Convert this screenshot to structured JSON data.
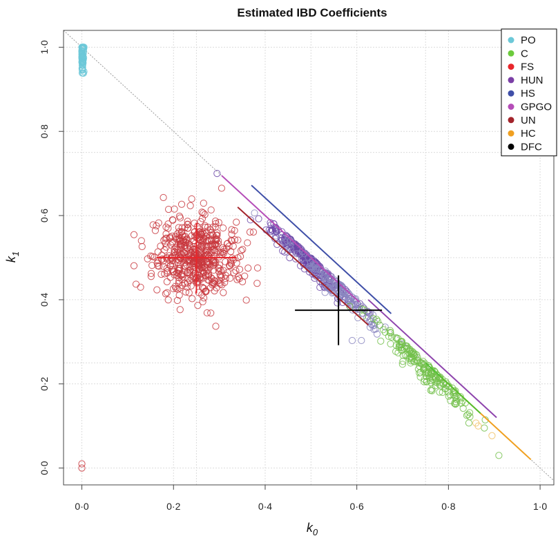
{
  "chart_data": {
    "type": "scatter",
    "title": "Estimated IBD Coefficients",
    "xlabel": "k",
    "xlabel_sub": "0",
    "ylabel": "k",
    "ylabel_sub": "1",
    "xlim": [
      -0.04,
      1.03
    ],
    "ylim": [
      -0.04,
      1.04
    ],
    "x_ticks": [
      0.0,
      0.2,
      0.4,
      0.6,
      0.8,
      1.0
    ],
    "x_tick_labels": [
      "0·0",
      "0·2",
      "0·4",
      "0·6",
      "0·8",
      "1·0"
    ],
    "y_ticks": [
      0.0,
      0.2,
      0.4,
      0.6,
      0.8,
      1.0
    ],
    "y_tick_labels": [
      "0·0",
      "0·2",
      "0·4",
      "0·6",
      "0·8",
      "1·0"
    ],
    "grid": true,
    "grid_lines": {
      "x": [
        0.25,
        0.5,
        0.75
      ],
      "y": [
        0.25,
        0.5,
        0.75
      ]
    },
    "reference_line": {
      "x": [
        0,
        1
      ],
      "y": [
        1,
        0
      ],
      "color": "#999999",
      "style": "dotted"
    },
    "legend_position": "top-right",
    "legend": [
      {
        "name": "PO",
        "color": "#6cc8d8"
      },
      {
        "name": "C",
        "color": "#6ccb3c"
      },
      {
        "name": "FS",
        "color": "#e8262b"
      },
      {
        "name": "HUN",
        "color": "#7b3fa6"
      },
      {
        "name": "HS",
        "color": "#3f4fa8"
      },
      {
        "name": "GPGO",
        "color": "#b54db8"
      },
      {
        "name": "UN",
        "color": "#a3242b"
      },
      {
        "name": "HC",
        "color": "#f0a020"
      },
      {
        "name": "DFC",
        "color": "#000000"
      }
    ],
    "clusters": [
      {
        "name": "FS",
        "color": "#c8383e",
        "center": [
          0.25,
          0.5
        ],
        "spread": [
          0.045,
          0.045
        ],
        "count": 520
      },
      {
        "name": "PO",
        "color": "#6cc8d8",
        "center": [
          0.003,
          0.975
        ],
        "spread": [
          0.002,
          0.018
        ],
        "count": 70
      },
      {
        "name": "HUN",
        "color": "#6b47a8",
        "center": [
          0.5,
          0.5
        ],
        "spread": [
          0.05,
          0.02
        ],
        "count": 260
      },
      {
        "name": "HS",
        "color": "#8a86c0",
        "center": [
          0.55,
          0.42
        ],
        "spread": [
          0.05,
          0.02
        ],
        "count": 140
      },
      {
        "name": "C",
        "color": "#72c04a",
        "center": [
          0.75,
          0.23
        ],
        "spread": [
          0.05,
          0.02
        ],
        "count": 180
      }
    ],
    "outlier_points": [
      {
        "x": 0.0,
        "y": 0.01,
        "color": "#c8383e"
      },
      {
        "x": 0.0,
        "y": 0.0,
        "color": "#c8383e"
      },
      {
        "x": 0.295,
        "y": 0.7,
        "color": "#6b47a8"
      },
      {
        "x": 0.305,
        "y": 0.665,
        "color": "#c8383e"
      },
      {
        "x": 0.59,
        "y": 0.303,
        "color": "#8a86c0"
      },
      {
        "x": 0.61,
        "y": 0.303,
        "color": "#8a86c0"
      },
      {
        "x": 0.91,
        "y": 0.03,
        "color": "#72c04a"
      },
      {
        "x": 0.895,
        "y": 0.077,
        "color": "#f0c060"
      },
      {
        "x": 0.865,
        "y": 0.1,
        "color": "#f0c060"
      },
      {
        "x": 0.86,
        "y": 0.107,
        "color": "#f0c060"
      }
    ],
    "fitted_lines": [
      {
        "name": "HS",
        "color": "#3f4fa8",
        "x": [
          0.37,
          0.675
        ],
        "y": [
          0.672,
          0.367
        ]
      },
      {
        "name": "UN",
        "color": "#a3242b",
        "x": [
          0.34,
          0.625
        ],
        "y": [
          0.62,
          0.34
        ]
      },
      {
        "name": "GPGO",
        "color": "#b54db8",
        "x": [
          0.305,
          0.605
        ],
        "y": [
          0.695,
          0.395
        ]
      },
      {
        "name": "HUN",
        "color": "#8e44ad",
        "x": [
          0.625,
          0.905
        ],
        "y": [
          0.4,
          0.12
        ]
      },
      {
        "name": "HC",
        "color": "#f0a020",
        "x": [
          0.78,
          0.98
        ],
        "y": [
          0.22,
          0.02
        ]
      },
      {
        "name": "C",
        "color": "#50c030",
        "x": [
          0.75,
          0.87
        ],
        "y": [
          0.25,
          0.13
        ]
      }
    ],
    "crosses": [
      {
        "name": "FS",
        "color": "#e8262b",
        "x": [
          0.163,
          0.337
        ],
        "x_at_y": 0.5,
        "y": [
          0.415,
          0.583
        ],
        "y_at_x": 0.25
      },
      {
        "name": "DFC",
        "color": "#000000",
        "x": [
          0.465,
          0.655
        ],
        "x_at_y": 0.375,
        "y": [
          0.292,
          0.458
        ],
        "y_at_x": 0.56
      }
    ]
  }
}
